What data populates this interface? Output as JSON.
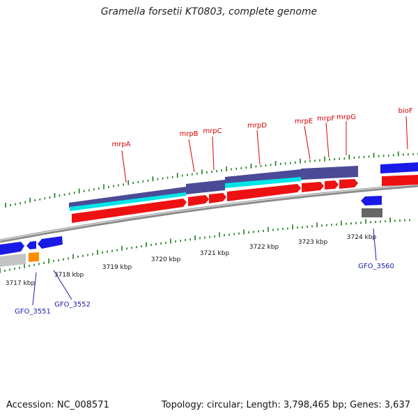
{
  "title": "Gramella forsetii KT0803, complete genome",
  "footer": {
    "accession": "Accession: NC_008571",
    "topology": "Topology: circular; Length: 3,798,465 bp; Genes: 3,637"
  },
  "colors": {
    "forward_gene": "#ee1111",
    "reverse_gene": "#1a1ae6",
    "operon_bar": "#4a4a96",
    "cyan_bar": "#00e5e8",
    "backbone": "#8a8a8a",
    "tick": "#1a7a1a",
    "label_red": "#d40000",
    "label_blue": "#1a1aa8"
  },
  "forward_genes": [
    "mrpA",
    "mrpB",
    "mrpC",
    "mrpD",
    "mrpE",
    "mrpF",
    "mrpG",
    "bioF"
  ],
  "reverse_genes": [
    "GFO_3551",
    "GFO_3552",
    "GFO_3560"
  ],
  "scale_labels": [
    "3717 kbp",
    "3718 kbp",
    "3719 kbp",
    "3720 kbp",
    "3721 kbp",
    "3722 kbp",
    "3723 kbp",
    "3724 kbp"
  ]
}
